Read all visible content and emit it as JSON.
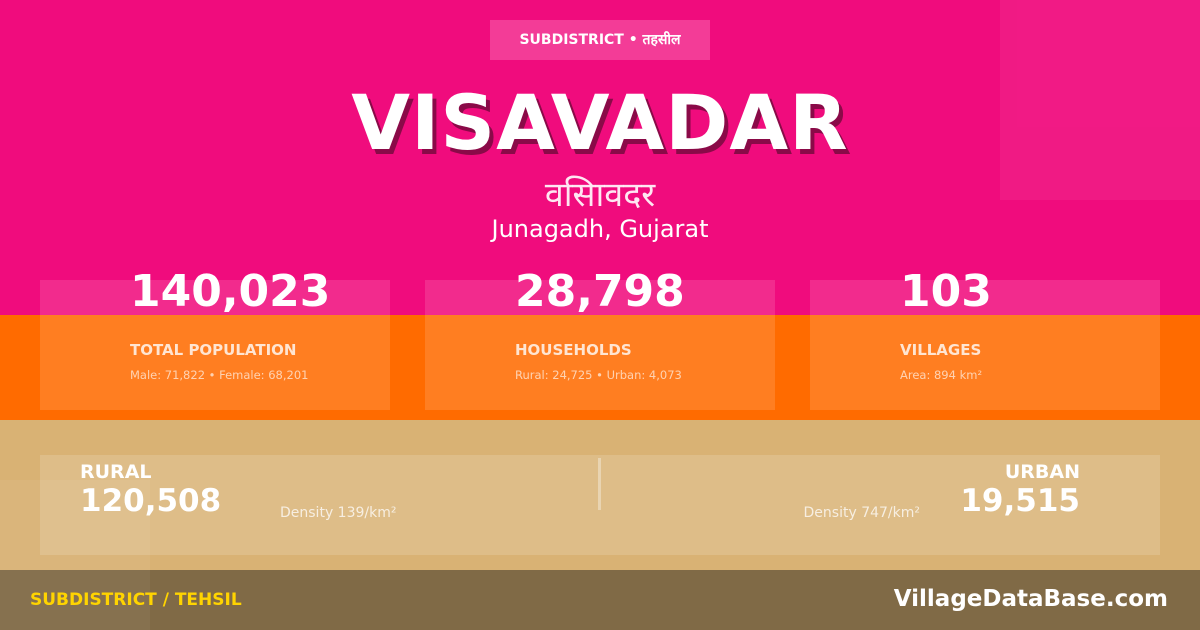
{
  "badge": "SUBDISTRICT • तहसील",
  "title": "VISAVADAR",
  "title_hindi": "वसिावदर",
  "location": "Junagadh, Gujarat",
  "stats": [
    {
      "value": "140,023",
      "label": "TOTAL POPULATION",
      "sub": "Male: 71,822 • Female: 68,201"
    },
    {
      "value": "28,798",
      "label": "HOUSEHOLDS",
      "sub": "Rural: 24,725 • Urban: 4,073"
    },
    {
      "value": "103",
      "label": "VILLAGES",
      "sub": "Area: 894 km²"
    }
  ],
  "rural": {
    "label": "RURAL",
    "value": "120,508",
    "density": "Density 139/km²"
  },
  "urban": {
    "label": "URBAN",
    "value": "19,515",
    "density": "Density 747/km²"
  },
  "footer": {
    "left": "SUBDISTRICT / TEHSIL",
    "right": "VillageDataBase.com"
  },
  "colors": {
    "pink": "#f00c7d",
    "orange": "#ff6b00",
    "tan": "#d9b274",
    "footer": "#806a46",
    "footer_accent": "#ffd400"
  }
}
